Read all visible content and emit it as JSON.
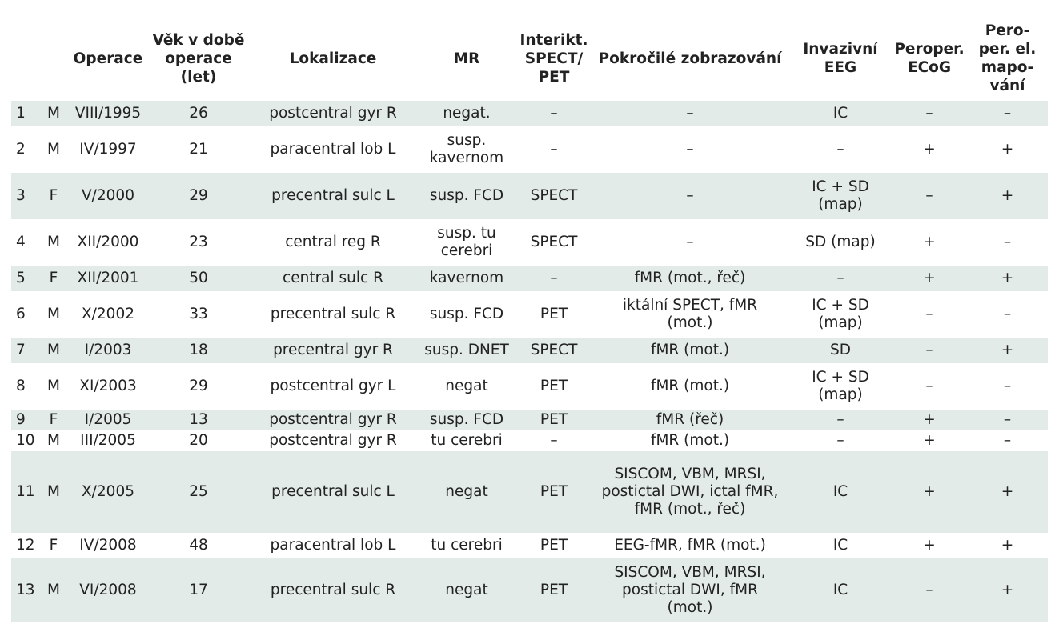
{
  "headers": [
    "",
    "",
    "Operace",
    "Věk v době\noperace\n(let)",
    "Lokalizace",
    "MR",
    "Interikt.\nSPECT/\nPET",
    "Pokročilé zobrazování",
    "Invazivní\nEEG",
    "Peroper.\nECoG",
    "Pero-\nper. el.\nmapo-\nvání"
  ],
  "rows": [
    [
      "1",
      "M",
      "VIII/1995",
      "26",
      "postcentral gyr R",
      "negat.",
      "–",
      "–",
      "IC",
      "–",
      "–"
    ],
    [
      "2",
      "M",
      "IV/1997",
      "21",
      "paracentral lob L",
      "susp.\nkavernom",
      "–",
      "–",
      "–",
      "+",
      "+"
    ],
    [
      "3",
      "F",
      "V/2000",
      "29",
      "precentral sulc L",
      "susp. FCD",
      "SPECT",
      "–",
      "IC + SD\n(map)",
      "–",
      "+"
    ],
    [
      "4",
      "M",
      "XII/2000",
      "23",
      "central reg R",
      "susp. tu\ncerebri",
      "SPECT",
      "–",
      "SD (map)",
      "+",
      "–"
    ],
    [
      "5",
      "F",
      "XII/2001",
      "50",
      "central sulc R",
      "kavernom",
      "–",
      "fMR (mot., řeč)",
      "–",
      "+",
      "+"
    ],
    [
      "6",
      "M",
      "X/2002",
      "33",
      "precentral sulc R",
      "susp. FCD",
      "PET",
      "iktální SPECT, fMR\n(mot.)",
      "IC + SD\n(map)",
      "–",
      "–"
    ],
    [
      "7",
      "M",
      "I/2003",
      "18",
      "precentral gyr R",
      "susp. DNET",
      "SPECT",
      "fMR (mot.)",
      "SD",
      "–",
      "+"
    ],
    [
      "8",
      "M",
      "XI/2003",
      "29",
      "postcentral gyr L",
      "negat",
      "PET",
      "fMR (mot.)",
      "IC + SD\n(map)",
      "–",
      "–"
    ],
    [
      "9",
      "F",
      "I/2005",
      "13",
      "postcentral gyr R",
      "susp. FCD",
      "PET",
      "fMR (řeč)",
      "–",
      "+",
      "–"
    ],
    [
      "10",
      "M",
      "III/2005",
      "20",
      "postcentral gyr R",
      "tu cerebri",
      "–",
      "fMR (mot.)",
      "–",
      "+",
      "–"
    ],
    [
      "11",
      "M",
      "X/2005",
      "25",
      "precentral sulc L",
      "negat",
      "PET",
      "SISCOM, VBM, MRSI,\npostictal DWI, ictal fMR,\nfMR (mot., řeč)",
      "IC",
      "+",
      "+"
    ],
    [
      "12",
      "F",
      "IV/2008",
      "48",
      "paracentral lob L",
      "tu cerebri",
      "PET",
      "EEG-fMR, fMR (mot.)",
      "IC",
      "+",
      "+"
    ],
    [
      "13",
      "M",
      "VI/2008",
      "17",
      "precentral sulc R",
      "negat",
      "PET",
      "SISCOM, VBM, MRSI,\npostictal DWI, fMR\n(mot.)",
      "IC",
      "–",
      "+"
    ]
  ]
}
